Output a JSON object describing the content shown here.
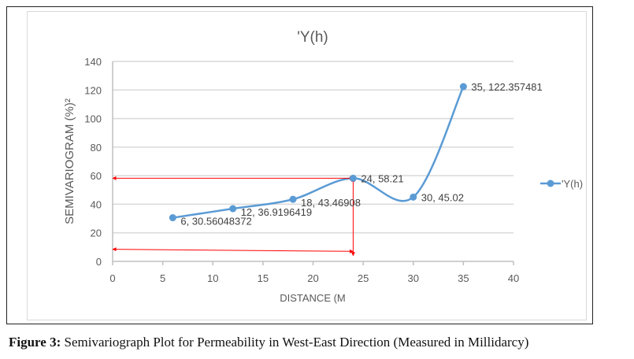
{
  "chart_data": {
    "type": "line",
    "title": "'Y(h)",
    "xlabel": "DISTANCE (M",
    "ylabel": "SEMIVARIOGRAM  (%)²",
    "xlim": [
      0,
      40
    ],
    "ylim": [
      0,
      140
    ],
    "xticks": [
      0,
      5,
      10,
      15,
      20,
      25,
      30,
      35,
      40
    ],
    "yticks": [
      0,
      20,
      40,
      60,
      80,
      100,
      120,
      140
    ],
    "grid": true,
    "legend": "right",
    "smooth": true,
    "series": [
      {
        "name": "'Y(h)",
        "color": "#5b9bd5",
        "x": [
          6,
          12,
          18,
          24,
          30,
          35
        ],
        "y": [
          30.56048372,
          36.9196419,
          43.46908,
          58.21,
          45.02,
          122.357481
        ],
        "labels": [
          "6, 30.56048372",
          "12, 36.9196419",
          "18, 43.46908",
          "24, 58.21",
          "30, 45.02",
          "35, 122.357481"
        ]
      }
    ],
    "annotations": {
      "color": "#ff0000",
      "arrows": [
        {
          "from": [
            0,
            58.21
          ],
          "to": [
            24,
            58.21
          ]
        },
        {
          "from": [
            24,
            4
          ],
          "to": [
            24,
            58.21
          ]
        },
        {
          "from": [
            0,
            8.5
          ],
          "to": [
            24,
            7
          ]
        }
      ]
    }
  },
  "caption": {
    "label": "Figure 3:",
    "text": " Semivariograph Plot for Permeability in West-East Direction (Measured in Millidarcy)"
  }
}
